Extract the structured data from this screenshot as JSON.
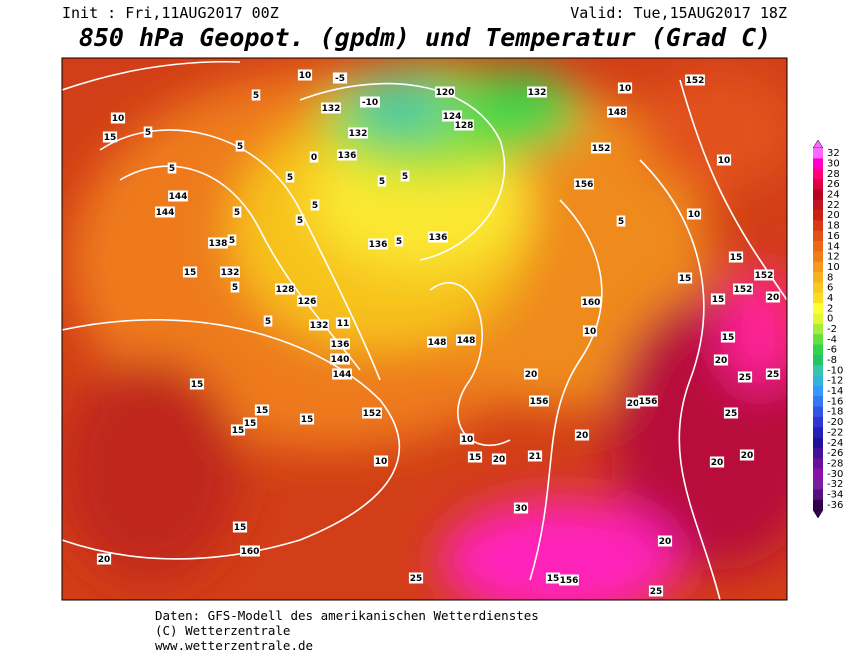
{
  "header": {
    "init": "Init : Fri,11AUG2017 00Z",
    "valid": "Valid: Tue,15AUG2017 18Z",
    "title": "850 hPa Geopot. (gpdm) und Temperatur (Grad C)"
  },
  "colorbar": {
    "levels": [
      32,
      30,
      28,
      26,
      24,
      22,
      20,
      18,
      16,
      14,
      12,
      10,
      8,
      6,
      4,
      2,
      0,
      -2,
      -4,
      -6,
      -8,
      -10,
      -12,
      -14,
      -16,
      -18,
      -20,
      -22,
      -24,
      -26,
      -28,
      -30,
      -32,
      -34,
      -36
    ],
    "colors": [
      "#ff66ff",
      "#ff00cc",
      "#ff0077",
      "#dd0044",
      "#b80022",
      "#c0141e",
      "#cc2211",
      "#d83a14",
      "#e2511a",
      "#ea6816",
      "#f07e18",
      "#f5991e",
      "#f7b21e",
      "#f8c820",
      "#f8dd22",
      "#ffff33",
      "#e2f733",
      "#a6ec3c",
      "#66e040",
      "#33d24d",
      "#22c466",
      "#33c6aa",
      "#33b4dd",
      "#3399ff",
      "#3377f4",
      "#3355e6",
      "#3333d6",
      "#2222b8",
      "#221199",
      "#44119a",
      "#6a1199",
      "#8c11a6",
      "#7a1d9e",
      "#55117f",
      "#33004f"
    ]
  },
  "map_labels": [
    10,
    5,
    15,
    5,
    144,
    144,
    5,
    138,
    5,
    15,
    132,
    5,
    128,
    126,
    5,
    132,
    11,
    136,
    140,
    144,
    15,
    15,
    15,
    15,
    15,
    152,
    10,
    15,
    160,
    20,
    25,
    30,
    15,
    156,
    25,
    20,
    20,
    20,
    25,
    25,
    25,
    20,
    15,
    20,
    152,
    152,
    15,
    15,
    15,
    10,
    10,
    152,
    10,
    148,
    152,
    156,
    5,
    160,
    10,
    20,
    156,
    20,
    156,
    20,
    21,
    20,
    15,
    10,
    148,
    148,
    136,
    136,
    5,
    136,
    132,
    132,
    120,
    124,
    128,
    132,
    -10,
    -5,
    5,
    5,
    0,
    5,
    5,
    5,
    5,
    5,
    10
  ],
  "footer": {
    "line1": "Daten: GFS-Modell des amerikanischen Wetterdienstes",
    "line2": "(C) Wetterzentrale",
    "line3": "www.wetterzentrale.de"
  }
}
